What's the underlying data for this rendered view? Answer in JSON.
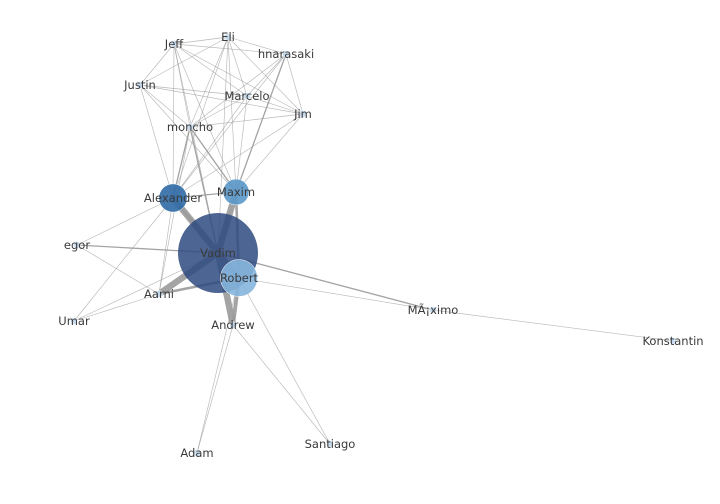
{
  "graph": {
    "nodes": [
      {
        "id": "Vadim",
        "label": "Vadim",
        "weight": 1.0,
        "color": "#2e4a80"
      },
      {
        "id": "Robert",
        "label": "Robert",
        "weight": 0.3,
        "color": "#86b6dd"
      },
      {
        "id": "Alexander",
        "label": "Alexander",
        "weight": 0.15,
        "color": "#2f6aa5"
      },
      {
        "id": "Maxim",
        "label": "Maxim",
        "weight": 0.12,
        "color": "#5b97c8"
      },
      {
        "id": "Aarni",
        "label": "Aarni",
        "weight": 0.05,
        "color": "#c6dbef"
      },
      {
        "id": "Andrew",
        "label": "Andrew",
        "weight": 0.05,
        "color": "#c6dbef"
      },
      {
        "id": "moncho",
        "label": "moncho",
        "weight": 0.05,
        "color": "#c6dbef"
      },
      {
        "id": "Marcelo",
        "label": "Marcelo",
        "weight": 0.05,
        "color": "#c6dbef"
      },
      {
        "id": "Jim",
        "label": "Jim",
        "weight": 0.05,
        "color": "#c6dbef"
      },
      {
        "id": "hnarasaki",
        "label": "hnarasaki",
        "weight": 0.05,
        "color": "#c6dbef"
      },
      {
        "id": "Eli",
        "label": "Eli",
        "weight": 0.05,
        "color": "#c6dbef"
      },
      {
        "id": "Jeff",
        "label": "Jeff",
        "weight": 0.05,
        "color": "#c6dbef"
      },
      {
        "id": "Justin",
        "label": "Justin",
        "weight": 0.05,
        "color": "#c6dbef"
      },
      {
        "id": "egor",
        "label": "egor",
        "weight": 0.05,
        "color": "#c6dbef"
      },
      {
        "id": "Umar",
        "label": "Umar",
        "weight": 0.05,
        "color": "#c6dbef"
      },
      {
        "id": "Maximo",
        "label": "MÃ¡ximo",
        "weight": 0.05,
        "color": "#c6dbef"
      },
      {
        "id": "Konstantin",
        "label": "Konstantin",
        "weight": 0.05,
        "color": "#c6dbef"
      },
      {
        "id": "Santiago",
        "label": "Santiago",
        "weight": 0.05,
        "color": "#c6dbef"
      },
      {
        "id": "Adam",
        "label": "Adam",
        "weight": 0.05,
        "color": "#c6dbef"
      }
    ],
    "edges": [
      {
        "source": "Vadim",
        "target": "Robert",
        "weight": 5
      },
      {
        "source": "Vadim",
        "target": "Alexander",
        "weight": 5
      },
      {
        "source": "Vadim",
        "target": "Maxim",
        "weight": 5
      },
      {
        "source": "Vadim",
        "target": "Aarni",
        "weight": 5
      },
      {
        "source": "Vadim",
        "target": "Andrew",
        "weight": 5
      },
      {
        "source": "Robert",
        "target": "Andrew",
        "weight": 3
      },
      {
        "source": "Robert",
        "target": "Aarni",
        "weight": 2
      },
      {
        "source": "Robert",
        "target": "Maxim",
        "weight": 2
      },
      {
        "source": "Alexander",
        "target": "Robert",
        "weight": 2
      },
      {
        "source": "Alexander",
        "target": "Maxim",
        "weight": 1
      },
      {
        "source": "Vadim",
        "target": "egor",
        "weight": 1
      },
      {
        "source": "Vadim",
        "target": "Maximo",
        "weight": 1
      },
      {
        "source": "Vadim",
        "target": "moncho",
        "weight": 1
      },
      {
        "source": "Vadim",
        "target": "Umar",
        "weight": 0.5
      },
      {
        "source": "Robert",
        "target": "Maximo",
        "weight": 0.5
      },
      {
        "source": "Robert",
        "target": "Santiago",
        "weight": 0.5
      },
      {
        "source": "Andrew",
        "target": "Santiago",
        "weight": 0.5
      },
      {
        "source": "Andrew",
        "target": "Adam",
        "weight": 0.5
      },
      {
        "source": "Robert",
        "target": "Adam",
        "weight": 0.5
      },
      {
        "source": "Maximo",
        "target": "Konstantin",
        "weight": 0.5
      },
      {
        "source": "egor",
        "target": "Alexander",
        "weight": 0.5
      },
      {
        "source": "egor",
        "target": "Aarni",
        "weight": 0.5
      },
      {
        "source": "Umar",
        "target": "Alexander",
        "weight": 0.5
      },
      {
        "source": "Umar",
        "target": "Aarni",
        "weight": 0.5
      },
      {
        "source": "Alexander",
        "target": "Aarni",
        "weight": 0.5
      },
      {
        "source": "Alexander",
        "target": "moncho",
        "weight": 1
      },
      {
        "source": "Alexander",
        "target": "Marcelo",
        "weight": 0.5
      },
      {
        "source": "Alexander",
        "target": "Jim",
        "weight": 0.5
      },
      {
        "source": "Alexander",
        "target": "hnarasaki",
        "weight": 0.5
      },
      {
        "source": "Alexander",
        "target": "Eli",
        "weight": 0.5
      },
      {
        "source": "Alexander",
        "target": "Jeff",
        "weight": 0.5
      },
      {
        "source": "Alexander",
        "target": "Justin",
        "weight": 0.5
      },
      {
        "source": "Maxim",
        "target": "moncho",
        "weight": 1
      },
      {
        "source": "Maxim",
        "target": "Marcelo",
        "weight": 0.5
      },
      {
        "source": "Maxim",
        "target": "Jim",
        "weight": 0.5
      },
      {
        "source": "Maxim",
        "target": "hnarasaki",
        "weight": 1
      },
      {
        "source": "Maxim",
        "target": "Eli",
        "weight": 0.5
      },
      {
        "source": "Maxim",
        "target": "Jeff",
        "weight": 0.5
      },
      {
        "source": "Maxim",
        "target": "Justin",
        "weight": 0.5
      },
      {
        "source": "Vadim",
        "target": "Jeff",
        "weight": 0.5
      },
      {
        "source": "Vadim",
        "target": "Eli",
        "weight": 0.5
      },
      {
        "source": "Aarni",
        "target": "moncho",
        "weight": 0.5
      },
      {
        "source": "moncho",
        "target": "Marcelo",
        "weight": 0.5
      },
      {
        "source": "moncho",
        "target": "Jim",
        "weight": 0.5
      },
      {
        "source": "moncho",
        "target": "hnarasaki",
        "weight": 0.5
      },
      {
        "source": "moncho",
        "target": "Eli",
        "weight": 0.5
      },
      {
        "source": "moncho",
        "target": "Jeff",
        "weight": 0.5
      },
      {
        "source": "moncho",
        "target": "Justin",
        "weight": 0.5
      },
      {
        "source": "Marcelo",
        "target": "Jim",
        "weight": 0.5
      },
      {
        "source": "Marcelo",
        "target": "hnarasaki",
        "weight": 0.5
      },
      {
        "source": "Marcelo",
        "target": "Eli",
        "weight": 0.5
      },
      {
        "source": "Marcelo",
        "target": "Jeff",
        "weight": 0.5
      },
      {
        "source": "Marcelo",
        "target": "Justin",
        "weight": 0.5
      },
      {
        "source": "Jim",
        "target": "hnarasaki",
        "weight": 0.5
      },
      {
        "source": "Jim",
        "target": "Eli",
        "weight": 0.5
      },
      {
        "source": "Jim",
        "target": "Jeff",
        "weight": 0.5
      },
      {
        "source": "Jim",
        "target": "Justin",
        "weight": 0.5
      },
      {
        "source": "hnarasaki",
        "target": "Eli",
        "weight": 0.5
      },
      {
        "source": "hnarasaki",
        "target": "Jeff",
        "weight": 0.5
      },
      {
        "source": "Eli",
        "target": "Jeff",
        "weight": 0.5
      },
      {
        "source": "Eli",
        "target": "Justin",
        "weight": 0.5
      },
      {
        "source": "Jeff",
        "target": "Justin",
        "weight": 0.5
      }
    ]
  }
}
